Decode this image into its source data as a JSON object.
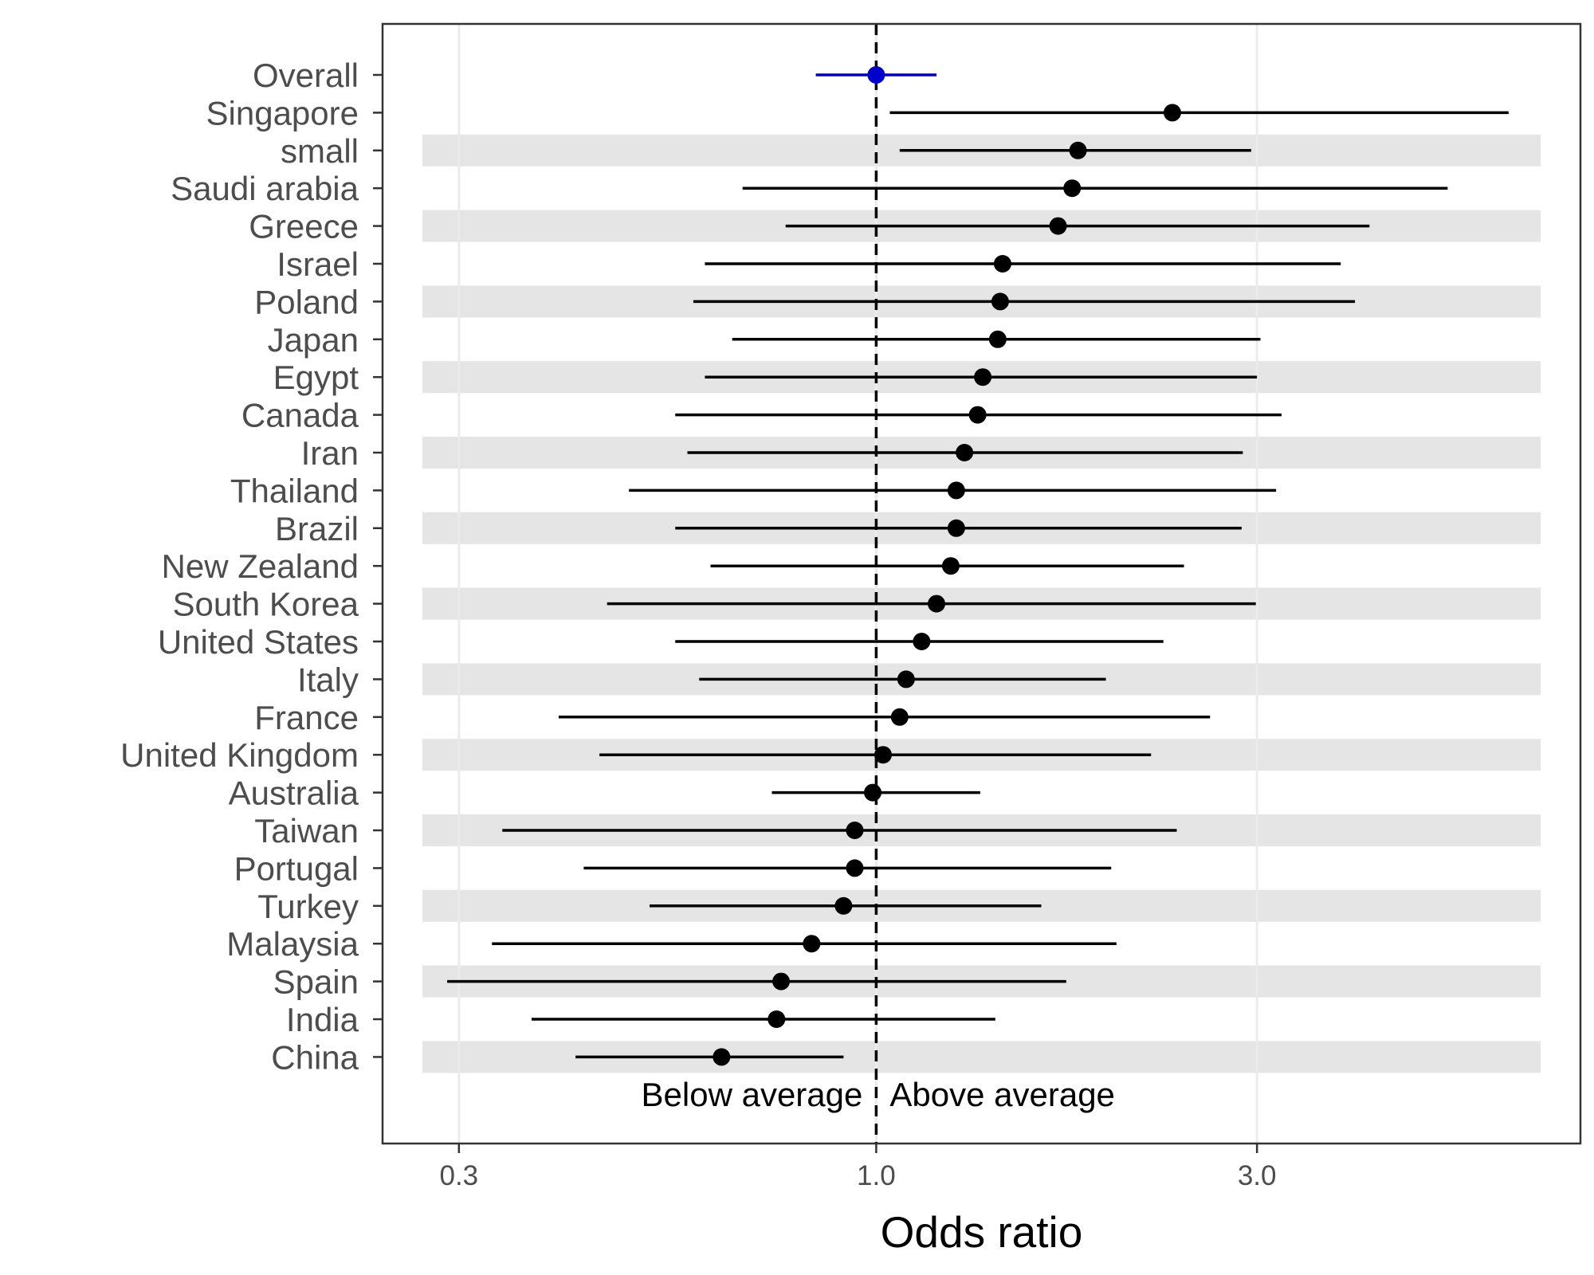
{
  "chart_data": {
    "type": "forest",
    "xlabel": "Odds ratio",
    "x_scale": "log",
    "xlim": [
      0.27,
      6.8
    ],
    "x_ticks": [
      0.3,
      1.0,
      3.0
    ],
    "x_tick_labels": [
      "0.3",
      "1.0",
      "3.0"
    ],
    "reference_line": 1.0,
    "annotations": {
      "left": "Below average",
      "right": "Above average"
    },
    "grid": true,
    "colors": {
      "overall": "#0000cc",
      "country": "#000000",
      "band": "#e5e5e5"
    },
    "rows": [
      {
        "label": "Overall",
        "or": 1.0,
        "lo": 0.84,
        "hi": 1.19,
        "overall": true
      },
      {
        "label": "Singapore",
        "or": 2.35,
        "lo": 1.04,
        "hi": 6.2
      },
      {
        "label": "small",
        "or": 1.79,
        "lo": 1.07,
        "hi": 2.95
      },
      {
        "label": "Saudi arabia",
        "or": 1.76,
        "lo": 0.68,
        "hi": 5.2
      },
      {
        "label": "Greece",
        "or": 1.69,
        "lo": 0.77,
        "hi": 4.15
      },
      {
        "label": "Israel",
        "or": 1.44,
        "lo": 0.61,
        "hi": 3.82
      },
      {
        "label": "Poland",
        "or": 1.43,
        "lo": 0.59,
        "hi": 3.98
      },
      {
        "label": "Japan",
        "or": 1.42,
        "lo": 0.66,
        "hi": 3.03
      },
      {
        "label": "Egypt",
        "or": 1.36,
        "lo": 0.61,
        "hi": 3.0
      },
      {
        "label": "Canada",
        "or": 1.34,
        "lo": 0.56,
        "hi": 3.22
      },
      {
        "label": "Iran",
        "or": 1.29,
        "lo": 0.58,
        "hi": 2.88
      },
      {
        "label": "Thailand",
        "or": 1.26,
        "lo": 0.49,
        "hi": 3.17
      },
      {
        "label": "Brazil",
        "or": 1.26,
        "lo": 0.56,
        "hi": 2.87
      },
      {
        "label": "New Zealand",
        "or": 1.24,
        "lo": 0.62,
        "hi": 2.43
      },
      {
        "label": "South Korea",
        "or": 1.19,
        "lo": 0.46,
        "hi": 2.99
      },
      {
        "label": "United States",
        "or": 1.14,
        "lo": 0.56,
        "hi": 2.29
      },
      {
        "label": "Italy",
        "or": 1.09,
        "lo": 0.6,
        "hi": 1.94
      },
      {
        "label": "France",
        "or": 1.07,
        "lo": 0.4,
        "hi": 2.62
      },
      {
        "label": "United Kingdom",
        "or": 1.02,
        "lo": 0.45,
        "hi": 2.21
      },
      {
        "label": "Australia",
        "or": 0.99,
        "lo": 0.74,
        "hi": 1.35
      },
      {
        "label": "Taiwan",
        "or": 0.94,
        "lo": 0.34,
        "hi": 2.38
      },
      {
        "label": "Portugal",
        "or": 0.94,
        "lo": 0.43,
        "hi": 1.97
      },
      {
        "label": "Turkey",
        "or": 0.91,
        "lo": 0.52,
        "hi": 1.61
      },
      {
        "label": "Malaysia",
        "or": 0.83,
        "lo": 0.33,
        "hi": 2.0
      },
      {
        "label": "Spain",
        "or": 0.76,
        "lo": 0.29,
        "hi": 1.73
      },
      {
        "label": "India",
        "or": 0.75,
        "lo": 0.37,
        "hi": 1.41
      },
      {
        "label": "China",
        "or": 0.64,
        "lo": 0.42,
        "hi": 0.91
      }
    ]
  }
}
